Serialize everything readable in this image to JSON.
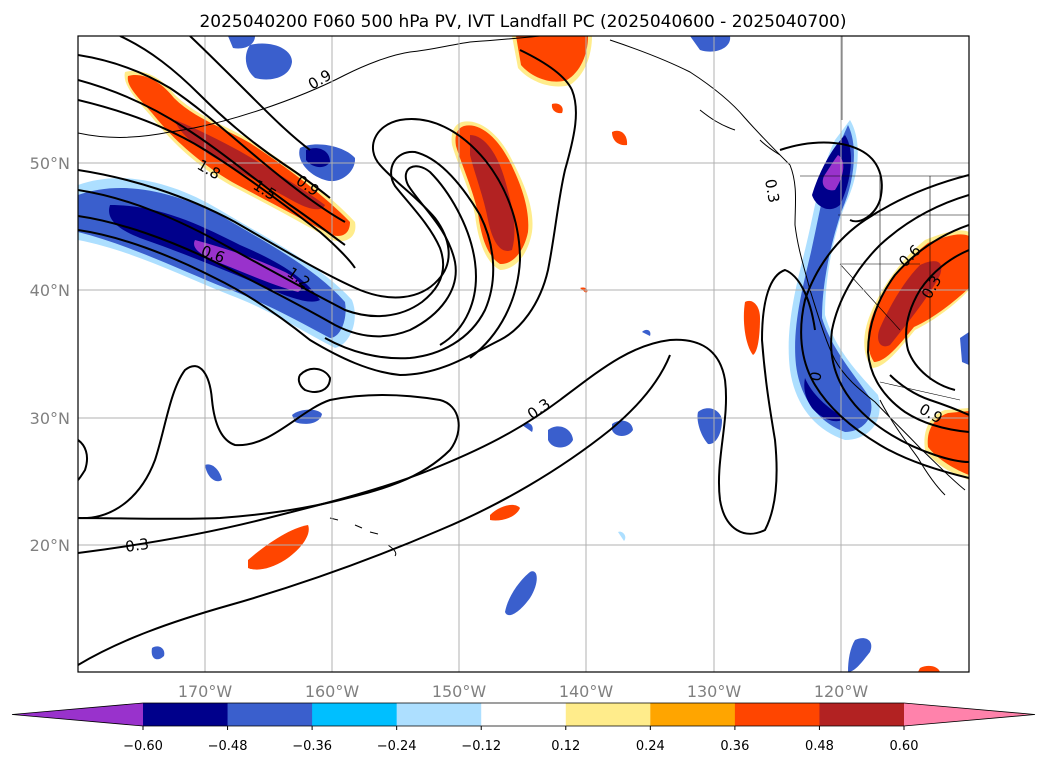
{
  "title": "2025040200 F060 500 hPa PV, IVT Landfall PC (2025040600 - 2025040700)",
  "lon_ticks": [
    "170°W",
    "160°W",
    "150°W",
    "140°W",
    "130°W",
    "120°W"
  ],
  "lat_ticks": [
    "50°N",
    "40°N",
    "30°N",
    "20°N"
  ],
  "contour_labels": [
    "1.8",
    "1.5",
    "0.9",
    "0.6",
    "1.2",
    "0.9",
    "0.3",
    "0.3",
    "0",
    "0.9",
    "0.3",
    "0.6",
    "0.3"
  ],
  "colorbar": {
    "ticks": [
      "−0.60",
      "−0.48",
      "−0.36",
      "−0.24",
      "−0.12",
      "0.12",
      "0.24",
      "0.36",
      "0.48",
      "0.60"
    ],
    "colors": [
      "#9932CC",
      "#00008B",
      "#3A5FCD",
      "#00BFFF",
      "#ADDFFF",
      "#FFFFFF",
      "#FFEC8B",
      "#FFA500",
      "#FF4500",
      "#B22222",
      "#FF82AB"
    ]
  },
  "colors": {
    "gridline": "#b0b0b0",
    "contour": "#000000",
    "ticklabel": "#808080"
  }
}
